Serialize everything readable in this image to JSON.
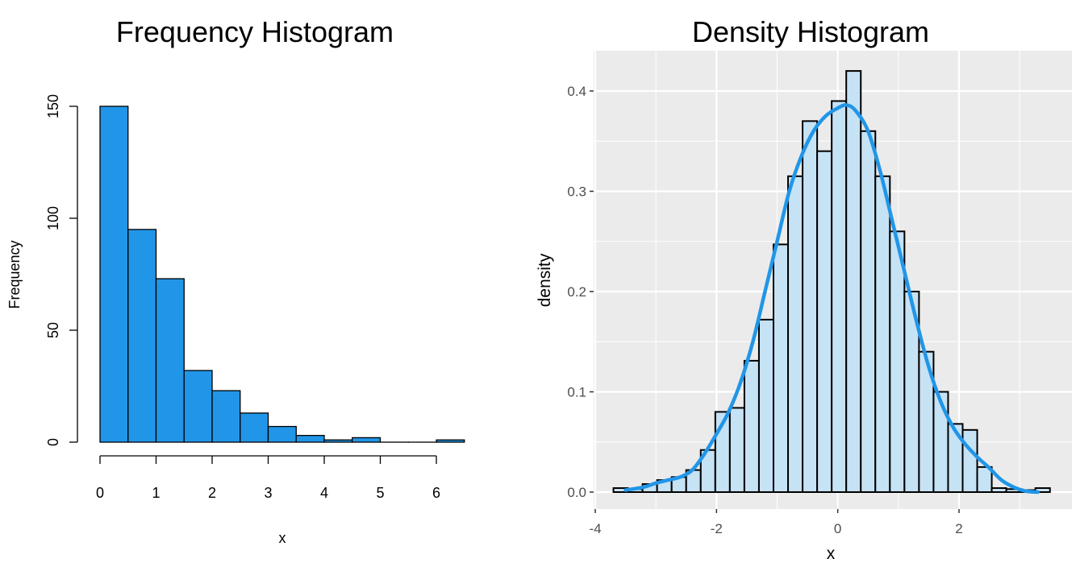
{
  "chart_data": [
    {
      "type": "bar",
      "style": "base-r histogram",
      "title": "Frequency Histogram",
      "xlabel": "x",
      "ylabel": "Frequency",
      "bin_edges": [
        0,
        0.5,
        1,
        1.5,
        2,
        2.5,
        3,
        3.5,
        4,
        4.5,
        5,
        5.5,
        6,
        6.5
      ],
      "values": [
        150,
        95,
        73,
        32,
        23,
        13,
        7,
        3,
        1,
        2,
        0,
        0,
        1
      ],
      "xlim": [
        0,
        6.5
      ],
      "ylim": [
        0,
        150
      ],
      "xticks": [
        "0",
        "1",
        "2",
        "3",
        "4",
        "5",
        "6"
      ],
      "yticks": [
        "0",
        "50",
        "100",
        "150"
      ],
      "bar_color": "#2196e8",
      "grid": false
    },
    {
      "type": "bar",
      "style": "ggplot histogram with density curve",
      "title": "Density Histogram",
      "xlabel": "x",
      "ylabel": "density",
      "bin_edges": [
        -3.7,
        -3.46,
        -3.22,
        -2.98,
        -2.74,
        -2.5,
        -2.26,
        -2.02,
        -1.78,
        -1.54,
        -1.3,
        -1.06,
        -0.82,
        -0.58,
        -0.34,
        -0.1,
        0.14,
        0.38,
        0.62,
        0.86,
        1.1,
        1.34,
        1.58,
        1.82,
        2.06,
        2.3,
        2.54,
        2.78,
        3.02,
        3.26,
        3.5
      ],
      "values": [
        0.004,
        0.003,
        0.008,
        0.012,
        0.015,
        0.022,
        0.042,
        0.08,
        0.084,
        0.131,
        0.172,
        0.247,
        0.315,
        0.37,
        0.34,
        0.39,
        0.42,
        0.36,
        0.315,
        0.26,
        0.2,
        0.14,
        0.1,
        0.068,
        0.062,
        0.025,
        0.004,
        0.003,
        0.002,
        0.004
      ],
      "density_curve": {
        "x": [
          -3.5,
          -3.2,
          -3.0,
          -2.8,
          -2.6,
          -2.4,
          -2.2,
          -2.0,
          -1.8,
          -1.6,
          -1.4,
          -1.2,
          -1.0,
          -0.8,
          -0.6,
          -0.4,
          -0.2,
          0.0,
          0.15,
          0.3,
          0.5,
          0.7,
          0.9,
          1.1,
          1.3,
          1.5,
          1.7,
          1.9,
          2.1,
          2.3,
          2.5,
          2.7,
          2.9,
          3.1,
          3.3
        ],
        "y": [
          0.002,
          0.005,
          0.009,
          0.012,
          0.015,
          0.022,
          0.038,
          0.058,
          0.08,
          0.11,
          0.15,
          0.2,
          0.25,
          0.3,
          0.335,
          0.36,
          0.375,
          0.383,
          0.386,
          0.38,
          0.36,
          0.32,
          0.27,
          0.22,
          0.17,
          0.125,
          0.09,
          0.065,
          0.048,
          0.035,
          0.024,
          0.012,
          0.005,
          0.001,
          0.0
        ]
      },
      "xlim": [
        -4,
        3.6
      ],
      "ylim": [
        0,
        0.4
      ],
      "xticks": [
        "-4",
        "-2",
        "0",
        "2"
      ],
      "yticks": [
        "0.0",
        "0.1",
        "0.2",
        "0.3",
        "0.4"
      ],
      "bar_fill": "#c6e2f5",
      "bar_outline": "#000000",
      "curve_color": "#2196e8",
      "panel_background": "#ebebeb",
      "grid": true
    }
  ]
}
